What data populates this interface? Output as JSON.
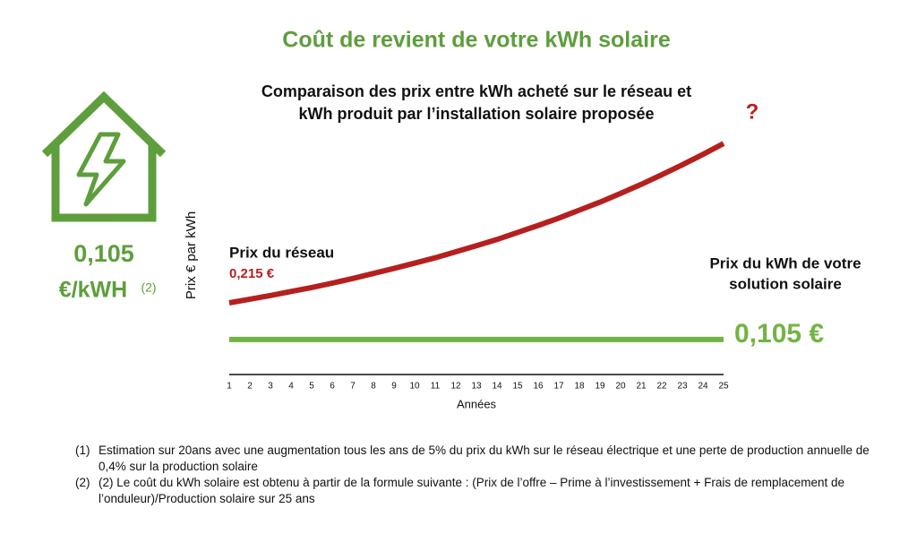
{
  "chart_data": {
    "type": "line",
    "title": "Coût de revient de votre kWh solaire",
    "subtitle": [
      "Comparaison des prix entre kWh acheté sur le réseau et",
      "kWh produit par l’installation solaire proposée"
    ],
    "x_label": "Années",
    "y_label": "Prix € par kWh",
    "x": [
      1,
      2,
      3,
      4,
      5,
      6,
      7,
      8,
      9,
      10,
      11,
      12,
      13,
      14,
      15,
      16,
      17,
      18,
      19,
      20,
      21,
      22,
      23,
      24,
      25
    ],
    "xlim": [
      1,
      25
    ],
    "xticks": [
      1,
      2,
      3,
      4,
      5,
      6,
      7,
      8,
      9,
      10,
      11,
      12,
      13,
      14,
      15,
      16,
      17,
      18,
      19,
      20,
      21,
      22,
      23,
      24,
      25
    ],
    "ylim": [
      0,
      0.72
    ],
    "grid": false,
    "series": [
      {
        "name": "Prix du réseau",
        "color": "#b5201f",
        "values": [
          0.215,
          0.226,
          0.237,
          0.249,
          0.261,
          0.274,
          0.288,
          0.303,
          0.318,
          0.334,
          0.35,
          0.368,
          0.386,
          0.405,
          0.426,
          0.447,
          0.469,
          0.493,
          0.517,
          0.543,
          0.57,
          0.599,
          0.629,
          0.66,
          0.693
        ]
      },
      {
        "name": "Prix du kWh de votre solution solaire",
        "color": "#72b443",
        "values": [
          0.105,
          0.105,
          0.105,
          0.105,
          0.105,
          0.105,
          0.105,
          0.105,
          0.105,
          0.105,
          0.105,
          0.105,
          0.105,
          0.105,
          0.105,
          0.105,
          0.105,
          0.105,
          0.105,
          0.105,
          0.105,
          0.105,
          0.105,
          0.105,
          0.105
        ]
      }
    ],
    "annotations": {
      "question": "?",
      "grid_label": "Prix du réseau",
      "grid_value": "0,215 €",
      "solar_label": [
        "Prix du kWh de votre",
        "solution solaire"
      ],
      "solar_value": "0,105 €",
      "side_value": "0,105",
      "side_unit": "€/kWH",
      "side_note": "(2)"
    }
  },
  "footnotes": [
    {
      "marker": "(1)",
      "text": "Estimation sur 20ans avec une augmentation tous les ans de 5% du prix du kWh sur le réseau électrique et une perte de production annuelle de 0,4% sur la production solaire"
    },
    {
      "marker": "(2)",
      "text": "(2) Le coût du kWh solaire est obtenu à partir de la formule suivante : (Prix de l’offre – Prime à l’investissement + Frais de remplacement de l’onduleur)/Production solaire sur 25 ans"
    }
  ]
}
